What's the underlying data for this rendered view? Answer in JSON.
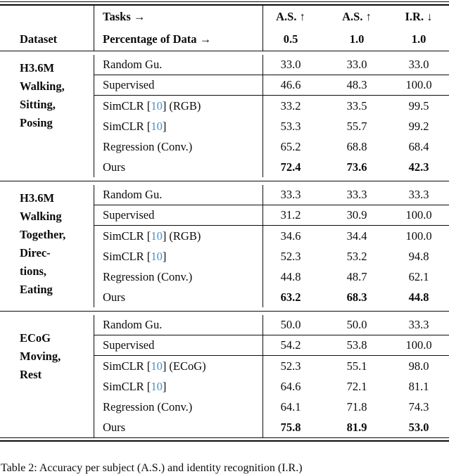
{
  "header": {
    "dataset_label": "Dataset",
    "tasks_label": "Tasks →",
    "percentage_label": "Percentage of Data →",
    "metrics": [
      "A.S. ↑",
      "A.S. ↑",
      "I.R. ↓"
    ],
    "percentages": [
      "0.5",
      "1.0",
      "1.0"
    ]
  },
  "sections": [
    {
      "dataset_lines": [
        "H3.6M",
        "Walking,",
        "Sitting,",
        "Posing"
      ],
      "rows": [
        {
          "method_parts": [
            {
              "t": "Random Gu."
            }
          ],
          "values": [
            "33.0",
            "33.0",
            "33.0"
          ],
          "sep_below": true,
          "bold_values": false
        },
        {
          "method_parts": [
            {
              "t": "Supervised"
            }
          ],
          "values": [
            "46.6",
            "48.3",
            "100.0"
          ],
          "sep_below": true,
          "bold_values": false
        },
        {
          "method_parts": [
            {
              "t": "SimCLR ["
            },
            {
              "t": "10",
              "cite": true
            },
            {
              "t": "] (RGB)"
            }
          ],
          "values": [
            "33.2",
            "33.5",
            "99.5"
          ],
          "sep_below": false,
          "bold_values": false
        },
        {
          "method_parts": [
            {
              "t": "SimCLR ["
            },
            {
              "t": "10",
              "cite": true
            },
            {
              "t": "]"
            }
          ],
          "values": [
            "53.3",
            "55.7",
            "99.2"
          ],
          "sep_below": false,
          "bold_values": false
        },
        {
          "method_parts": [
            {
              "t": "Regression (Conv.)"
            }
          ],
          "values": [
            "65.2",
            "68.8",
            "68.4"
          ],
          "sep_below": false,
          "bold_values": false
        },
        {
          "method_parts": [
            {
              "t": "Ours"
            }
          ],
          "values": [
            "72.4",
            "73.6",
            "42.3"
          ],
          "sep_below": false,
          "bold_values": true
        }
      ]
    },
    {
      "dataset_lines": [
        "H3.6M",
        "Walking",
        "Together,",
        "Direc-",
        "tions,",
        "Eating"
      ],
      "rows": [
        {
          "method_parts": [
            {
              "t": "Random Gu."
            }
          ],
          "values": [
            "33.3",
            "33.3",
            "33.3"
          ],
          "sep_below": true,
          "bold_values": false
        },
        {
          "method_parts": [
            {
              "t": "Supervised"
            }
          ],
          "values": [
            "31.2",
            "30.9",
            "100.0"
          ],
          "sep_below": true,
          "bold_values": false
        },
        {
          "method_parts": [
            {
              "t": "SimCLR ["
            },
            {
              "t": "10",
              "cite": true
            },
            {
              "t": "] (RGB)"
            }
          ],
          "values": [
            "34.6",
            "34.4",
            "100.0"
          ],
          "sep_below": false,
          "bold_values": false
        },
        {
          "method_parts": [
            {
              "t": "SimCLR ["
            },
            {
              "t": "10",
              "cite": true
            },
            {
              "t": "]"
            }
          ],
          "values": [
            "52.3",
            "53.2",
            "94.8"
          ],
          "sep_below": false,
          "bold_values": false
        },
        {
          "method_parts": [
            {
              "t": "Regression (Conv.)"
            }
          ],
          "values": [
            "44.8",
            "48.7",
            "62.1"
          ],
          "sep_below": false,
          "bold_values": false
        },
        {
          "method_parts": [
            {
              "t": "Ours"
            }
          ],
          "values": [
            "63.2",
            "68.3",
            "44.8"
          ],
          "sep_below": false,
          "bold_values": true
        }
      ]
    },
    {
      "dataset_lines": [
        "ECoG",
        "Moving,",
        "Rest"
      ],
      "rows": [
        {
          "method_parts": [
            {
              "t": "Random Gu."
            }
          ],
          "values": [
            "50.0",
            "50.0",
            "33.3"
          ],
          "sep_below": true,
          "bold_values": false
        },
        {
          "method_parts": [
            {
              "t": "Supervised"
            }
          ],
          "values": [
            "54.2",
            "53.8",
            "100.0"
          ],
          "sep_below": true,
          "bold_values": false
        },
        {
          "method_parts": [
            {
              "t": "SimCLR ["
            },
            {
              "t": "10",
              "cite": true
            },
            {
              "t": "] (ECoG)"
            }
          ],
          "values": [
            "52.3",
            "55.1",
            "98.0"
          ],
          "sep_below": false,
          "bold_values": false
        },
        {
          "method_parts": [
            {
              "t": "SimCLR ["
            },
            {
              "t": "10",
              "cite": true
            },
            {
              "t": "]"
            }
          ],
          "values": [
            "64.6",
            "72.1",
            "81.1"
          ],
          "sep_below": false,
          "bold_values": false
        },
        {
          "method_parts": [
            {
              "t": "Regression (Conv.)"
            }
          ],
          "values": [
            "64.1",
            "71.8",
            "74.3"
          ],
          "sep_below": false,
          "bold_values": false
        },
        {
          "method_parts": [
            {
              "t": "Ours"
            }
          ],
          "values": [
            "75.8",
            "81.9",
            "53.0"
          ],
          "sep_below": false,
          "bold_values": true
        }
      ]
    }
  ],
  "caption": "Table 2: Accuracy per subject (A.S.) and identity recognition (I.R.)",
  "colors": {
    "citation": "#4192cd",
    "rule": "#0b0b0b"
  }
}
